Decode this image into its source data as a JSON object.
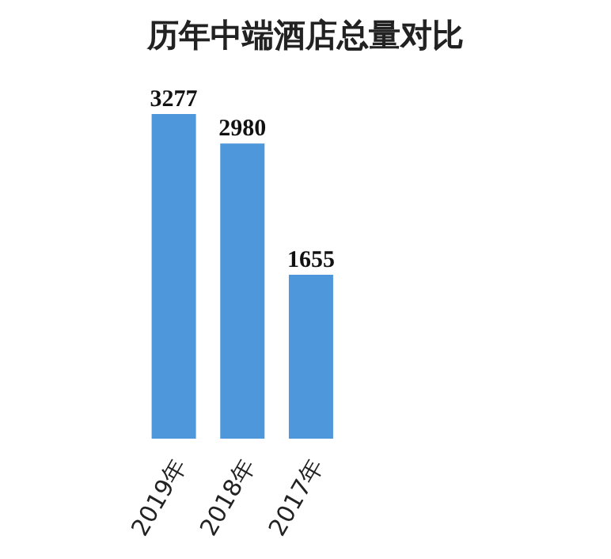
{
  "chart_data": {
    "type": "bar",
    "title": "历年中端酒店总量对比",
    "categories": [
      "2019年",
      "2018年",
      "2017年"
    ],
    "values": [
      3277,
      2980,
      1655
    ],
    "color": "#4f97db",
    "data_labels": true
  }
}
